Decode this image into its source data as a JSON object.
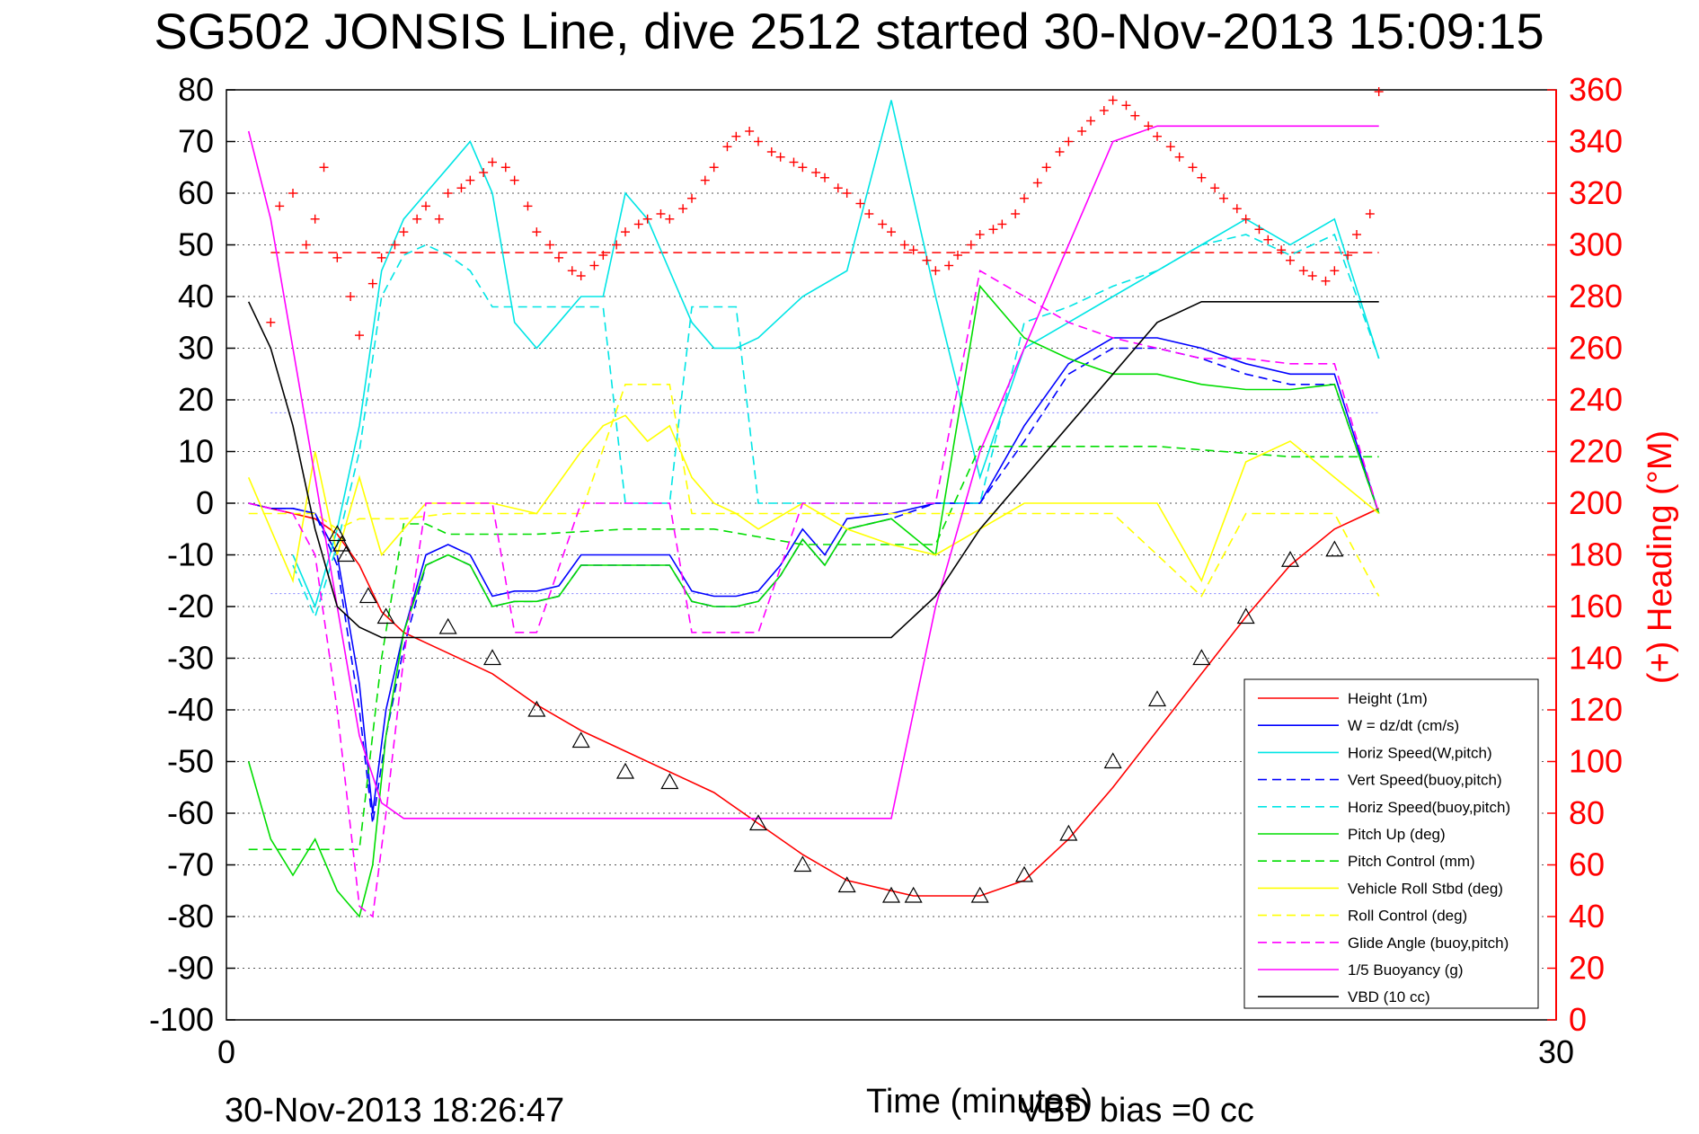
{
  "chart_data": {
    "type": "line",
    "title": "SG502 JONSIS Line, dive 2512 started 30-Nov-2013 15:09:15",
    "xlabel": "Time (minutes)",
    "y2label": "(+) Heading (°M)",
    "xlim": [
      0,
      30
    ],
    "ylim": [
      -100,
      80
    ],
    "y2lim": [
      0,
      360
    ],
    "x_ticks": [
      "0",
      "30"
    ],
    "y_ticks": [
      "80",
      "70",
      "60",
      "50",
      "40",
      "30",
      "20",
      "10",
      "0",
      "-10",
      "-20",
      "-30",
      "-40",
      "-50",
      "-60",
      "-70",
      "-80",
      "-90",
      "-100"
    ],
    "y2_ticks": [
      "360",
      "340",
      "320",
      "300",
      "280",
      "260",
      "240",
      "220",
      "200",
      "180",
      "160",
      "140",
      "120",
      "100",
      "80",
      "60",
      "40",
      "20",
      "0"
    ],
    "grid": "horizontal dotted",
    "legend_position": "lower-right",
    "footer_left": "30-Nov-2013 18:26:47",
    "footer_right": "VBD bias =0 cc",
    "colors": {
      "height": "#ff0000",
      "w": "#0000ff",
      "horiz_speed": "#00e5e5",
      "pitch": "#00dd00",
      "roll": "#ffff00",
      "glide": "#ff00ff",
      "vbd": "#000000",
      "heading": "#ff0000",
      "ref_purple": "#8080ff"
    },
    "reference_lines": {
      "heading_target_deg": 297,
      "purple_upper": 17.5,
      "purple_lower": -17.5
    },
    "series": [
      {
        "name": "Height (1m)",
        "key": "height",
        "style": "solid",
        "color": "#ff0000",
        "x": [
          0.5,
          1.0,
          1.5,
          2.0,
          2.5,
          3.0,
          3.5,
          4.0,
          5.0,
          6.0,
          7.0,
          8.0,
          9.0,
          10.0,
          11.0,
          12.0,
          13.0,
          14.0,
          15.0,
          15.5,
          16.0,
          17.0,
          18.0,
          19.0,
          20.0,
          21.0,
          22.0,
          23.0,
          24.0,
          25.0,
          26.0
        ],
        "y": [
          0,
          -1,
          -2,
          -3,
          -6,
          -12,
          -21,
          -25,
          -29,
          -33,
          -39,
          -44,
          -48,
          -52,
          -56,
          -62,
          -68,
          -73,
          -75,
          -76,
          -76,
          -76,
          -73,
          -65,
          -55,
          -44,
          -33,
          -22,
          -12,
          -5,
          -1
        ]
      },
      {
        "name": "W = dz/dt (cm/s)",
        "key": "w",
        "style": "solid",
        "color": "#0000ff",
        "x": [
          0.5,
          1.0,
          1.5,
          2.0,
          2.5,
          3.0,
          3.3,
          3.6,
          4.0,
          4.5,
          5.0,
          5.5,
          6.0,
          6.5,
          7.0,
          7.5,
          8.0,
          9.0,
          10.0,
          10.5,
          11.0,
          11.5,
          12.0,
          12.5,
          13.0,
          13.5,
          14.0,
          15.0,
          16.0,
          17.0,
          18.0,
          19.0,
          20.0,
          21.0,
          22.0,
          23.0,
          24.0,
          25.0,
          26.0
        ],
        "y": [
          0,
          -1,
          -1,
          -2,
          -10,
          -35,
          -60,
          -40,
          -25,
          -10,
          -8,
          -10,
          -18,
          -17,
          -17,
          -16,
          -10,
          -10,
          -10,
          -17,
          -18,
          -18,
          -17,
          -12,
          -5,
          -10,
          -3,
          -2,
          0,
          0,
          15,
          27,
          32,
          32,
          30,
          27,
          25,
          25,
          -2
        ]
      },
      {
        "name": "Horiz Speed(W,pitch)",
        "key": "horiz_w",
        "style": "solid",
        "color": "#00e5e5",
        "x": [
          1.5,
          2.0,
          2.5,
          3.0,
          3.5,
          4.0,
          4.5,
          5.0,
          5.5,
          6.0,
          6.5,
          7.0,
          7.5,
          8.0,
          8.5,
          9.0,
          9.5,
          10.0,
          10.5,
          11.0,
          11.5,
          12.0,
          13.0,
          14.0,
          15.0,
          16.0,
          17.0,
          18.0,
          19.0,
          20.0,
          21.0,
          22.0,
          23.0,
          24.0,
          25.0,
          26.0
        ],
        "y": [
          -10,
          -20,
          -5,
          15,
          45,
          55,
          60,
          65,
          70,
          60,
          35,
          30,
          35,
          40,
          40,
          60,
          55,
          45,
          35,
          30,
          30,
          32,
          40,
          45,
          78,
          40,
          5,
          30,
          35,
          40,
          45,
          50,
          55,
          50,
          55,
          28
        ]
      },
      {
        "name": "Vert Speed(buoy,pitch)",
        "key": "vert_b",
        "style": "dashed",
        "color": "#0000ff",
        "x": [
          0.5,
          1.0,
          1.5,
          2.0,
          2.5,
          3.0,
          3.3,
          3.6,
          4.0,
          4.5,
          5.0,
          5.5,
          6.0,
          6.5,
          7.0,
          7.5,
          8.0,
          9.0,
          10.0,
          10.5,
          11.0,
          11.5,
          12.0,
          12.5,
          13.0,
          13.5,
          14.0,
          15.0,
          16.0,
          17.0,
          18.0,
          19.0,
          20.0,
          21.0,
          22.0,
          23.0,
          24.0,
          25.0,
          26.0
        ],
        "y": [
          0,
          -1,
          -1,
          -2,
          -12,
          -40,
          -62,
          -45,
          -28,
          -12,
          -10,
          -12,
          -20,
          -19,
          -19,
          -18,
          -12,
          -12,
          -12,
          -19,
          -20,
          -20,
          -19,
          -14,
          -7,
          -12,
          -5,
          -3,
          0,
          0,
          12,
          25,
          30,
          30,
          28,
          25,
          23,
          23,
          -2
        ]
      },
      {
        "name": "Horiz Speed(buoy,pitch)",
        "key": "horiz_b",
        "style": "dashed",
        "color": "#00e5e5",
        "x": [
          1.5,
          2.0,
          2.5,
          3.0,
          3.5,
          4.0,
          4.5,
          5.0,
          5.5,
          6.0,
          6.5,
          7.0,
          7.5,
          8.0,
          8.5,
          9.0,
          9.5,
          10.0,
          10.5,
          11.0,
          11.5,
          12.0,
          13.0,
          14.0,
          15.0,
          16.0,
          17.0,
          18.0,
          19.0,
          20.0,
          21.0,
          22.0,
          23.0,
          24.0,
          25.0,
          26.0
        ],
        "y": [
          -12,
          -22,
          -8,
          10,
          40,
          48,
          50,
          48,
          45,
          38,
          38,
          38,
          38,
          38,
          38,
          0,
          0,
          0,
          38,
          38,
          38,
          0,
          0,
          0,
          0,
          0,
          0,
          35,
          38,
          42,
          45,
          50,
          52,
          48,
          52,
          28
        ]
      },
      {
        "name": "Pitch Up (deg)",
        "key": "pitch_up",
        "style": "solid",
        "color": "#00dd00",
        "x": [
          0.5,
          1.0,
          1.5,
          2.0,
          2.5,
          3.0,
          3.3,
          3.6,
          4.0,
          4.5,
          5.0,
          5.5,
          6.0,
          6.5,
          7.0,
          7.5,
          8.0,
          9.0,
          10.0,
          10.5,
          11.0,
          11.5,
          12.0,
          12.5,
          13.0,
          13.5,
          14.0,
          15.0,
          16.0,
          17.0,
          18.0,
          19.0,
          20.0,
          21.0,
          22.0,
          23.0,
          24.0,
          25.0,
          26.0
        ],
        "y": [
          -50,
          -65,
          -72,
          -65,
          -75,
          -80,
          -70,
          -45,
          -25,
          -12,
          -10,
          -12,
          -20,
          -19,
          -19,
          -18,
          -12,
          -12,
          -12,
          -19,
          -20,
          -20,
          -19,
          -14,
          -7,
          -12,
          -5,
          -3,
          -10,
          42,
          32,
          28,
          25,
          25,
          23,
          22,
          22,
          23,
          -2
        ]
      },
      {
        "name": "Pitch Control (mm)",
        "key": "pitch_ctrl",
        "style": "dashed",
        "color": "#00dd00",
        "x": [
          0.5,
          2.0,
          3.0,
          3.5,
          4.0,
          4.5,
          5.0,
          7.0,
          9.0,
          11.0,
          13.0,
          15.0,
          16.0,
          17.0,
          18.0,
          21.0,
          24.0,
          26.0
        ],
        "y": [
          -67,
          -67,
          -67,
          -30,
          -4,
          -4,
          -6,
          -6,
          -5,
          -5,
          -8,
          -8,
          -8,
          11,
          11,
          11,
          9,
          9
        ]
      },
      {
        "name": "Vehicle Roll Stbd (deg)",
        "key": "roll",
        "style": "solid",
        "color": "#ffff00",
        "x": [
          0.5,
          1.0,
          1.5,
          2.0,
          2.5,
          3.0,
          3.5,
          4.0,
          4.5,
          5.0,
          6.0,
          7.0,
          8.0,
          8.5,
          9.0,
          9.5,
          10.0,
          10.5,
          11.0,
          11.5,
          12.0,
          13.0,
          14.0,
          15.0,
          16.0,
          17.0,
          18.0,
          19.0,
          20.0,
          21.0,
          22.0,
          23.0,
          24.0,
          25.0,
          26.0
        ],
        "y": [
          5,
          -5,
          -15,
          10,
          -10,
          5,
          -10,
          -5,
          0,
          0,
          0,
          -2,
          10,
          15,
          17,
          12,
          15,
          5,
          0,
          -2,
          -5,
          0,
          -5,
          -8,
          -10,
          -5,
          0,
          0,
          0,
          0,
          -15,
          8,
          12,
          5,
          -2
        ]
      },
      {
        "name": "Roll Control (deg)",
        "key": "roll_ctrl",
        "style": "dashed",
        "color": "#ffff00",
        "x": [
          0.5,
          1.5,
          2.0,
          2.5,
          3.0,
          4.0,
          5.0,
          7.0,
          8.0,
          9.0,
          9.5,
          10.0,
          10.5,
          11.0,
          13.0,
          15.0,
          17.0,
          20.0,
          22.0,
          23.0,
          24.0,
          25.0,
          26.0
        ],
        "y": [
          -2,
          -2,
          -2,
          -5,
          -3,
          -3,
          -2,
          -2,
          -2,
          23,
          23,
          23,
          -2,
          -2,
          -2,
          -2,
          -2,
          -2,
          -18,
          -2,
          -2,
          -2,
          -18
        ]
      },
      {
        "name": "Glide Angle (buoy,pitch)",
        "key": "glide",
        "style": "dashed",
        "color": "#ff00ff",
        "x": [
          0.5,
          1.0,
          1.5,
          2.0,
          2.5,
          3.0,
          3.3,
          3.6,
          4.0,
          4.5,
          5.0,
          6.0,
          6.5,
          7.0,
          8.0,
          9.0,
          10.0,
          10.5,
          11.0,
          12.0,
          13.0,
          14.0,
          15.0,
          16.0,
          17.0,
          18.0,
          19.0,
          20.0,
          21.0,
          22.0,
          23.0,
          24.0,
          25.0,
          26.0
        ],
        "y": [
          0,
          -1,
          -2,
          -10,
          -40,
          -78,
          -80,
          -60,
          -30,
          0,
          0,
          0,
          -25,
          -25,
          0,
          0,
          0,
          -25,
          -25,
          -25,
          0,
          0,
          0,
          0,
          45,
          40,
          35,
          32,
          30,
          28,
          28,
          27,
          27,
          -2
        ]
      },
      {
        "name": "1/5 Buoyancy (g)",
        "key": "buoy",
        "style": "solid",
        "color": "#ff00ff",
        "x": [
          0.5,
          1.0,
          1.5,
          2.0,
          2.5,
          3.0,
          3.5,
          4.0,
          6.0,
          8.0,
          10.0,
          12.0,
          13.0,
          14.0,
          15.0,
          16.0,
          17.0,
          18.0,
          19.0,
          20.0,
          21.0,
          22.0,
          23.0,
          24.0,
          25.0,
          26.0
        ],
        "y": [
          72,
          55,
          30,
          5,
          -20,
          -45,
          -58,
          -61,
          -61,
          -61,
          -61,
          -61,
          -61,
          -61,
          -61,
          -20,
          10,
          30,
          50,
          70,
          73,
          73,
          73,
          73,
          73,
          73
        ]
      },
      {
        "name": "VBD (10 cc)",
        "key": "vbd",
        "style": "solid",
        "color": "#000000",
        "x": [
          0.5,
          1.0,
          1.5,
          2.0,
          2.5,
          3.0,
          3.5,
          4.0,
          6.0,
          8.0,
          10.0,
          12.0,
          13.0,
          14.0,
          15.0,
          16.0,
          17.0,
          18.0,
          19.0,
          20.0,
          21.0,
          22.0,
          23.0,
          24.0,
          25.0,
          26.0
        ],
        "y": [
          39,
          30,
          15,
          -5,
          -20,
          -24,
          -26,
          -26,
          -26,
          -26,
          -26,
          -26,
          -26,
          -26,
          -26,
          -18,
          -5,
          5,
          15,
          25,
          35,
          39,
          39,
          39,
          39,
          39
        ]
      }
    ],
    "heading_points": {
      "name": "Heading",
      "x": [
        1.0,
        1.2,
        1.5,
        1.8,
        2.0,
        2.2,
        2.5,
        2.8,
        3.0,
        3.3,
        3.5,
        3.8,
        4.0,
        4.3,
        4.5,
        4.8,
        5.0,
        5.3,
        5.5,
        5.8,
        6.0,
        6.3,
        6.5,
        6.8,
        7.0,
        7.3,
        7.5,
        7.8,
        8.0,
        8.3,
        8.5,
        8.8,
        9.0,
        9.3,
        9.5,
        9.8,
        10.0,
        10.3,
        10.5,
        10.8,
        11.0,
        11.3,
        11.5,
        11.8,
        12.0,
        12.3,
        12.5,
        12.8,
        13.0,
        13.3,
        13.5,
        13.8,
        14.0,
        14.3,
        14.5,
        14.8,
        15.0,
        15.3,
        15.5,
        15.8,
        16.0,
        16.3,
        16.5,
        16.8,
        17.0,
        17.3,
        17.5,
        17.8,
        18.0,
        18.3,
        18.5,
        18.8,
        19.0,
        19.3,
        19.5,
        19.8,
        20.0,
        20.3,
        20.5,
        20.8,
        21.0,
        21.3,
        21.5,
        21.8,
        22.0,
        22.3,
        22.5,
        22.8,
        23.0,
        23.3,
        23.5,
        23.8,
        24.0,
        24.3,
        24.5,
        24.8,
        25.0,
        25.3,
        25.5,
        25.8,
        26.0
      ],
      "y": [
        270,
        315,
        320,
        300,
        310,
        330,
        295,
        280,
        265,
        285,
        295,
        300,
        305,
        310,
        315,
        310,
        320,
        322,
        325,
        328,
        332,
        330,
        325,
        315,
        305,
        300,
        295,
        290,
        288,
        292,
        296,
        300,
        305,
        308,
        310,
        312,
        310,
        314,
        318,
        325,
        330,
        338,
        342,
        344,
        340,
        336,
        334,
        332,
        330,
        328,
        326,
        322,
        320,
        316,
        312,
        308,
        305,
        300,
        298,
        294,
        290,
        292,
        296,
        300,
        304,
        306,
        308,
        312,
        318,
        324,
        330,
        336,
        340,
        344,
        348,
        352,
        356,
        354,
        350,
        346,
        342,
        338,
        334,
        330,
        326,
        322,
        318,
        314,
        310,
        306,
        302,
        298,
        294,
        290,
        288,
        286,
        290,
        296,
        304,
        312,
        370
      ]
    },
    "markers_up": {
      "name": "triangles",
      "x": [
        2.5,
        2.6,
        2.7,
        3.2,
        3.6,
        5.0,
        6.0,
        7.0,
        8.0,
        9.0,
        10.0,
        12.0,
        13.0,
        14.0,
        15.0,
        15.5,
        17.0,
        18.0,
        19.0,
        20.0,
        21.0,
        22.0,
        23.0,
        24.0,
        25.0
      ],
      "y": [
        -6,
        -8,
        -10,
        -18,
        -22,
        -24,
        -30,
        -40,
        -46,
        -52,
        -54,
        -62,
        -70,
        -74,
        -76,
        -76,
        -76,
        -72,
        -64,
        -50,
        -38,
        -30,
        -22,
        -11,
        -9
      ]
    }
  }
}
